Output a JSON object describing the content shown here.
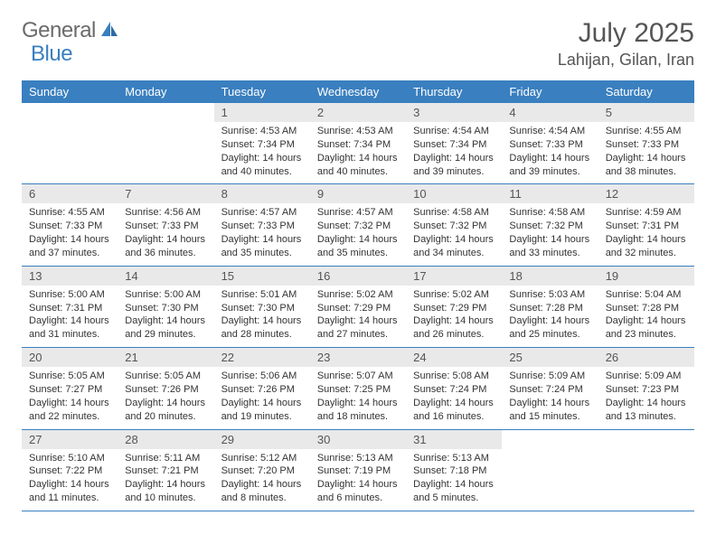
{
  "logo": {
    "general": "General",
    "blue": "Blue"
  },
  "title": "July 2025",
  "location": "Lahijan, Gilan, Iran",
  "colors": {
    "header_bg": "#3a7fbf",
    "daynum_bg": "#e9e9e9",
    "text": "#333333",
    "muted": "#555555",
    "border": "#3a7fbf"
  },
  "weekdays": [
    "Sunday",
    "Monday",
    "Tuesday",
    "Wednesday",
    "Thursday",
    "Friday",
    "Saturday"
  ],
  "weeks": [
    [
      {
        "empty": true
      },
      {
        "empty": true
      },
      {
        "n": "1",
        "rise": "Sunrise: 4:53 AM",
        "set": "Sunset: 7:34 PM",
        "d1": "Daylight: 14 hours",
        "d2": "and 40 minutes."
      },
      {
        "n": "2",
        "rise": "Sunrise: 4:53 AM",
        "set": "Sunset: 7:34 PM",
        "d1": "Daylight: 14 hours",
        "d2": "and 40 minutes."
      },
      {
        "n": "3",
        "rise": "Sunrise: 4:54 AM",
        "set": "Sunset: 7:34 PM",
        "d1": "Daylight: 14 hours",
        "d2": "and 39 minutes."
      },
      {
        "n": "4",
        "rise": "Sunrise: 4:54 AM",
        "set": "Sunset: 7:33 PM",
        "d1": "Daylight: 14 hours",
        "d2": "and 39 minutes."
      },
      {
        "n": "5",
        "rise": "Sunrise: 4:55 AM",
        "set": "Sunset: 7:33 PM",
        "d1": "Daylight: 14 hours",
        "d2": "and 38 minutes."
      }
    ],
    [
      {
        "n": "6",
        "rise": "Sunrise: 4:55 AM",
        "set": "Sunset: 7:33 PM",
        "d1": "Daylight: 14 hours",
        "d2": "and 37 minutes."
      },
      {
        "n": "7",
        "rise": "Sunrise: 4:56 AM",
        "set": "Sunset: 7:33 PM",
        "d1": "Daylight: 14 hours",
        "d2": "and 36 minutes."
      },
      {
        "n": "8",
        "rise": "Sunrise: 4:57 AM",
        "set": "Sunset: 7:33 PM",
        "d1": "Daylight: 14 hours",
        "d2": "and 35 minutes."
      },
      {
        "n": "9",
        "rise": "Sunrise: 4:57 AM",
        "set": "Sunset: 7:32 PM",
        "d1": "Daylight: 14 hours",
        "d2": "and 35 minutes."
      },
      {
        "n": "10",
        "rise": "Sunrise: 4:58 AM",
        "set": "Sunset: 7:32 PM",
        "d1": "Daylight: 14 hours",
        "d2": "and 34 minutes."
      },
      {
        "n": "11",
        "rise": "Sunrise: 4:58 AM",
        "set": "Sunset: 7:32 PM",
        "d1": "Daylight: 14 hours",
        "d2": "and 33 minutes."
      },
      {
        "n": "12",
        "rise": "Sunrise: 4:59 AM",
        "set": "Sunset: 7:31 PM",
        "d1": "Daylight: 14 hours",
        "d2": "and 32 minutes."
      }
    ],
    [
      {
        "n": "13",
        "rise": "Sunrise: 5:00 AM",
        "set": "Sunset: 7:31 PM",
        "d1": "Daylight: 14 hours",
        "d2": "and 31 minutes."
      },
      {
        "n": "14",
        "rise": "Sunrise: 5:00 AM",
        "set": "Sunset: 7:30 PM",
        "d1": "Daylight: 14 hours",
        "d2": "and 29 minutes."
      },
      {
        "n": "15",
        "rise": "Sunrise: 5:01 AM",
        "set": "Sunset: 7:30 PM",
        "d1": "Daylight: 14 hours",
        "d2": "and 28 minutes."
      },
      {
        "n": "16",
        "rise": "Sunrise: 5:02 AM",
        "set": "Sunset: 7:29 PM",
        "d1": "Daylight: 14 hours",
        "d2": "and 27 minutes."
      },
      {
        "n": "17",
        "rise": "Sunrise: 5:02 AM",
        "set": "Sunset: 7:29 PM",
        "d1": "Daylight: 14 hours",
        "d2": "and 26 minutes."
      },
      {
        "n": "18",
        "rise": "Sunrise: 5:03 AM",
        "set": "Sunset: 7:28 PM",
        "d1": "Daylight: 14 hours",
        "d2": "and 25 minutes."
      },
      {
        "n": "19",
        "rise": "Sunrise: 5:04 AM",
        "set": "Sunset: 7:28 PM",
        "d1": "Daylight: 14 hours",
        "d2": "and 23 minutes."
      }
    ],
    [
      {
        "n": "20",
        "rise": "Sunrise: 5:05 AM",
        "set": "Sunset: 7:27 PM",
        "d1": "Daylight: 14 hours",
        "d2": "and 22 minutes."
      },
      {
        "n": "21",
        "rise": "Sunrise: 5:05 AM",
        "set": "Sunset: 7:26 PM",
        "d1": "Daylight: 14 hours",
        "d2": "and 20 minutes."
      },
      {
        "n": "22",
        "rise": "Sunrise: 5:06 AM",
        "set": "Sunset: 7:26 PM",
        "d1": "Daylight: 14 hours",
        "d2": "and 19 minutes."
      },
      {
        "n": "23",
        "rise": "Sunrise: 5:07 AM",
        "set": "Sunset: 7:25 PM",
        "d1": "Daylight: 14 hours",
        "d2": "and 18 minutes."
      },
      {
        "n": "24",
        "rise": "Sunrise: 5:08 AM",
        "set": "Sunset: 7:24 PM",
        "d1": "Daylight: 14 hours",
        "d2": "and 16 minutes."
      },
      {
        "n": "25",
        "rise": "Sunrise: 5:09 AM",
        "set": "Sunset: 7:24 PM",
        "d1": "Daylight: 14 hours",
        "d2": "and 15 minutes."
      },
      {
        "n": "26",
        "rise": "Sunrise: 5:09 AM",
        "set": "Sunset: 7:23 PM",
        "d1": "Daylight: 14 hours",
        "d2": "and 13 minutes."
      }
    ],
    [
      {
        "n": "27",
        "rise": "Sunrise: 5:10 AM",
        "set": "Sunset: 7:22 PM",
        "d1": "Daylight: 14 hours",
        "d2": "and 11 minutes."
      },
      {
        "n": "28",
        "rise": "Sunrise: 5:11 AM",
        "set": "Sunset: 7:21 PM",
        "d1": "Daylight: 14 hours",
        "d2": "and 10 minutes."
      },
      {
        "n": "29",
        "rise": "Sunrise: 5:12 AM",
        "set": "Sunset: 7:20 PM",
        "d1": "Daylight: 14 hours",
        "d2": "and 8 minutes."
      },
      {
        "n": "30",
        "rise": "Sunrise: 5:13 AM",
        "set": "Sunset: 7:19 PM",
        "d1": "Daylight: 14 hours",
        "d2": "and 6 minutes."
      },
      {
        "n": "31",
        "rise": "Sunrise: 5:13 AM",
        "set": "Sunset: 7:18 PM",
        "d1": "Daylight: 14 hours",
        "d2": "and 5 minutes."
      },
      {
        "empty": true
      },
      {
        "empty": true
      }
    ]
  ]
}
